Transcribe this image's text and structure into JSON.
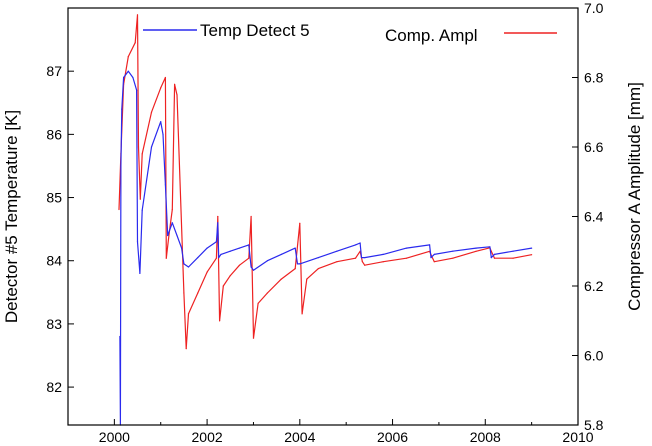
{
  "chart_data": {
    "type": "line",
    "title": "",
    "xlabel": "",
    "ylabel": "Detector #5 Temperature [K]",
    "y2label": "Compressor A  Amplitude [mm]",
    "xlim": [
      1999,
      2010
    ],
    "ylim": [
      81.4,
      88.0
    ],
    "y2lim": [
      5.8,
      7.0
    ],
    "xticks": [
      2000,
      2002,
      2004,
      2006,
      2008,
      2010
    ],
    "yticks": [
      82,
      83,
      84,
      85,
      86,
      87
    ],
    "y2ticks": [
      5.8,
      6.0,
      6.2,
      6.4,
      6.6,
      6.8,
      7.0
    ],
    "xtick_labels": [
      "2000",
      "2002",
      "2004",
      "2006",
      "2008",
      "2010"
    ],
    "ytick_labels": [
      "82",
      "83",
      "84",
      "85",
      "86",
      "87"
    ],
    "y2tick_labels": [
      "5.8",
      "6.0",
      "6.2",
      "6.4",
      "6.6",
      "6.8",
      "7.0"
    ],
    "grid": false,
    "legend_position": "top",
    "series": [
      {
        "name": "Temp Detect 5",
        "axis": "left",
        "color": "#2a2aee",
        "x": [
          2000.12,
          2000.13,
          2000.14,
          2000.16,
          2000.2,
          2000.3,
          2000.4,
          2000.48,
          2000.5,
          2000.55,
          2000.6,
          2000.8,
          2001.0,
          2001.05,
          2001.1,
          2001.15,
          2001.25,
          2001.35,
          2001.45,
          2001.5,
          2001.6,
          2001.8,
          2002.0,
          2002.2,
          2002.23,
          2002.25,
          2002.3,
          2002.5,
          2002.7,
          2002.9,
          2002.95,
          2003.0,
          2003.3,
          2003.6,
          2003.9,
          2003.95,
          2004.0,
          2004.4,
          2004.8,
          2005.2,
          2005.3,
          2005.33,
          2005.4,
          2005.8,
          2006.3,
          2006.8,
          2006.83,
          2006.9,
          2007.3,
          2007.8,
          2008.1,
          2008.13,
          2008.2,
          2008.6,
          2009.0
        ],
        "y": [
          82.8,
          81.4,
          85.5,
          86.4,
          86.9,
          87.0,
          86.9,
          86.7,
          84.3,
          83.8,
          84.8,
          85.8,
          86.2,
          86.0,
          85.2,
          84.4,
          84.6,
          84.4,
          84.2,
          83.95,
          83.9,
          84.05,
          84.2,
          84.3,
          84.6,
          84.05,
          84.1,
          84.15,
          84.2,
          84.25,
          83.9,
          83.85,
          84.0,
          84.1,
          84.2,
          83.95,
          83.95,
          84.05,
          84.15,
          84.25,
          84.28,
          84.05,
          84.05,
          84.1,
          84.2,
          84.25,
          84.05,
          84.1,
          84.15,
          84.2,
          84.22,
          84.05,
          84.1,
          84.15,
          84.2
        ]
      },
      {
        "name": "Comp. Ampl",
        "axis": "right",
        "color": "#ee2222",
        "x": [
          2000.1,
          2000.14,
          2000.2,
          2000.3,
          2000.45,
          2000.5,
          2000.52,
          2000.56,
          2000.6,
          2000.8,
          2001.0,
          2001.1,
          2001.12,
          2001.18,
          2001.25,
          2001.3,
          2001.35,
          2001.5,
          2001.55,
          2001.6,
          2001.8,
          2002.0,
          2002.2,
          2002.23,
          2002.27,
          2002.35,
          2002.5,
          2002.7,
          2002.9,
          2002.95,
          2003.0,
          2003.1,
          2003.3,
          2003.6,
          2003.9,
          2004.0,
          2004.05,
          2004.15,
          2004.4,
          2004.8,
          2005.2,
          2005.3,
          2005.35,
          2005.4,
          2005.8,
          2006.3,
          2006.8,
          2006.83,
          2006.9,
          2007.3,
          2007.8,
          2008.1,
          2008.13,
          2008.2,
          2008.6,
          2009.0
        ],
        "y": [
          6.42,
          6.58,
          6.78,
          6.86,
          6.9,
          6.98,
          6.6,
          6.45,
          6.58,
          6.7,
          6.77,
          6.8,
          6.28,
          6.35,
          6.42,
          6.78,
          6.75,
          6.18,
          6.02,
          6.12,
          6.18,
          6.24,
          6.28,
          6.4,
          6.1,
          6.2,
          6.23,
          6.26,
          6.28,
          6.4,
          6.05,
          6.15,
          6.18,
          6.22,
          6.25,
          6.38,
          6.12,
          6.22,
          6.25,
          6.27,
          6.28,
          6.3,
          6.27,
          6.26,
          6.27,
          6.28,
          6.3,
          6.29,
          6.27,
          6.28,
          6.3,
          6.31,
          6.3,
          6.28,
          6.28,
          6.29
        ]
      }
    ]
  }
}
